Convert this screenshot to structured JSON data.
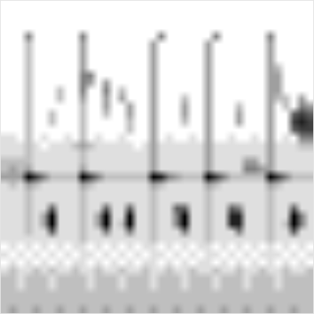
{
  "chart_data": {
    "type": "heatmap",
    "xlim": [
      0,
      400
    ],
    "ylim": [
      0,
      400
    ],
    "xticks": [],
    "yticks": [
      60,
      102,
      138,
      172,
      208,
      242,
      278,
      310,
      350,
      388
    ],
    "grid": true,
    "tick_labels": false,
    "zlim": [
      0,
      8
    ],
    "cells": [
      [
        0,
        0,
        0,
        0,
        0,
        0,
        0,
        0,
        0,
        0,
        0,
        0,
        0,
        0,
        0,
        0,
        0,
        0,
        0,
        0,
        0,
        0,
        0,
        0,
        0,
        0,
        0,
        0,
        0,
        0,
        0,
        0,
        0,
        0,
        0,
        0,
        0,
        0,
        0,
        0
      ],
      [
        0,
        0,
        0,
        0,
        0,
        0,
        0,
        0,
        0,
        0,
        0,
        0,
        0,
        0,
        0,
        0,
        0,
        0,
        0,
        0,
        0,
        0,
        0,
        0,
        0,
        0,
        0,
        0,
        0,
        0,
        0,
        0,
        0,
        0,
        0,
        0,
        0,
        0,
        0,
        0
      ],
      [
        0,
        0,
        0,
        0,
        0,
        0,
        0,
        0,
        0,
        0,
        0,
        0,
        0,
        0,
        0,
        0,
        0,
        0,
        0,
        0,
        0,
        0,
        0,
        0,
        0,
        0,
        0,
        0,
        0,
        0,
        0,
        0,
        0,
        0,
        0,
        0,
        0,
        0,
        0,
        0
      ],
      [
        0,
        0,
        0,
        0,
        0,
        0,
        0,
        0,
        0,
        0,
        0,
        0,
        0,
        0,
        0,
        0,
        0,
        0,
        0,
        0,
        0,
        0,
        0,
        0,
        0,
        0,
        0,
        0,
        0,
        0,
        0,
        0,
        0,
        0,
        0,
        0,
        0,
        0,
        0,
        0
      ],
      [
        0,
        0,
        0,
        4,
        0,
        0,
        0,
        0,
        0,
        0,
        4,
        0,
        0,
        0,
        0,
        0,
        0,
        0,
        0,
        0,
        4,
        0,
        0,
        0,
        0,
        0,
        0,
        4,
        0,
        0,
        0,
        0,
        0,
        0,
        4,
        0,
        0,
        0,
        0,
        0
      ],
      [
        0,
        0,
        0,
        2,
        0,
        0,
        0,
        0,
        0,
        0,
        3,
        0,
        0,
        0,
        0,
        0,
        0,
        0,
        0,
        3,
        0,
        0,
        0,
        0,
        0,
        0,
        3,
        0,
        0,
        0,
        0,
        0,
        0,
        0,
        3,
        0,
        0,
        0,
        0,
        0
      ],
      [
        0,
        0,
        0,
        2,
        0,
        0,
        0,
        0,
        0,
        0,
        3,
        0,
        0,
        0,
        0,
        0,
        0,
        0,
        0,
        3,
        0,
        0,
        0,
        0,
        0,
        0,
        3,
        0,
        0,
        0,
        0,
        0,
        0,
        0,
        3,
        0,
        0,
        0,
        0,
        0
      ],
      [
        0,
        0,
        0,
        2,
        0,
        0,
        0,
        0,
        0,
        0,
        3,
        0,
        0,
        0,
        0,
        0,
        0,
        0,
        0,
        3,
        0,
        0,
        0,
        0,
        0,
        0,
        3,
        0,
        0,
        0,
        0,
        0,
        0,
        0,
        3,
        0,
        0,
        0,
        0,
        0
      ],
      [
        0,
        0,
        0,
        2,
        0,
        0,
        0,
        0,
        0,
        0,
        3,
        0,
        0,
        0,
        0,
        0,
        0,
        0,
        0,
        3,
        0,
        0,
        0,
        0,
        0,
        0,
        3,
        0,
        0,
        0,
        0,
        0,
        0,
        0,
        3,
        2,
        0,
        0,
        0,
        0
      ],
      [
        0,
        0,
        0,
        2,
        0,
        0,
        0,
        0,
        0,
        0,
        4,
        4,
        0,
        0,
        0,
        0,
        0,
        0,
        0,
        3,
        0,
        0,
        0,
        0,
        0,
        0,
        3,
        0,
        0,
        0,
        0,
        0,
        0,
        0,
        3,
        3,
        0,
        0,
        0,
        0
      ],
      [
        0,
        0,
        0,
        2,
        0,
        0,
        0,
        0,
        0,
        0,
        4,
        3,
        0,
        3,
        0,
        0,
        0,
        0,
        0,
        3,
        0,
        0,
        0,
        0,
        0,
        0,
        3,
        0,
        0,
        0,
        0,
        0,
        0,
        0,
        3,
        3,
        0,
        0,
        0,
        0
      ],
      [
        0,
        0,
        0,
        2,
        0,
        0,
        0,
        2,
        0,
        0,
        4,
        0,
        0,
        4,
        0,
        2,
        0,
        0,
        0,
        3,
        0,
        0,
        0,
        0,
        0,
        0,
        3,
        0,
        0,
        0,
        0,
        0,
        0,
        0,
        3,
        3,
        0,
        0,
        0,
        0
      ],
      [
        0,
        0,
        0,
        2,
        0,
        0,
        0,
        2,
        0,
        0,
        3,
        0,
        0,
        3,
        0,
        3,
        0,
        0,
        0,
        3,
        0,
        0,
        0,
        2,
        0,
        0,
        3,
        0,
        0,
        0,
        0,
        0,
        0,
        0,
        3,
        2,
        2,
        0,
        3,
        0
      ],
      [
        0,
        0,
        0,
        2,
        0,
        0,
        0,
        0,
        0,
        0,
        2,
        0,
        0,
        3,
        0,
        0,
        3,
        0,
        0,
        3,
        0,
        0,
        0,
        3,
        0,
        0,
        3,
        0,
        0,
        0,
        2,
        0,
        0,
        0,
        3,
        0,
        2,
        0,
        4,
        3
      ],
      [
        0,
        0,
        0,
        2,
        0,
        0,
        2,
        0,
        0,
        0,
        2,
        0,
        0,
        2,
        0,
        0,
        3,
        0,
        0,
        3,
        0,
        0,
        0,
        3,
        0,
        0,
        3,
        0,
        0,
        0,
        3,
        0,
        0,
        0,
        3,
        0,
        0,
        5,
        6,
        5
      ],
      [
        0,
        0,
        0,
        2,
        0,
        0,
        2,
        0,
        0,
        0,
        2,
        0,
        0,
        0,
        0,
        0,
        2,
        0,
        0,
        3,
        0,
        0,
        0,
        2,
        0,
        0,
        3,
        0,
        0,
        0,
        3,
        0,
        0,
        0,
        3,
        0,
        0,
        6,
        7,
        6
      ],
      [
        0,
        0,
        0,
        2,
        0,
        0,
        0,
        0,
        0,
        0,
        2,
        0,
        0,
        0,
        0,
        0,
        2,
        0,
        0,
        3,
        0,
        0,
        0,
        0,
        0,
        0,
        3,
        0,
        0,
        0,
        0,
        0,
        0,
        0,
        3,
        0,
        0,
        5,
        6,
        6
      ],
      [
        1,
        1,
        0,
        2,
        0,
        1,
        0,
        0,
        1,
        0,
        2,
        0,
        1,
        0,
        0,
        1,
        0,
        0,
        0,
        3,
        0,
        1,
        0,
        0,
        1,
        0,
        3,
        0,
        0,
        1,
        0,
        0,
        1,
        0,
        3,
        0,
        1,
        0,
        4,
        4
      ],
      [
        1,
        1,
        1,
        2,
        1,
        0,
        1,
        1,
        1,
        2,
        3,
        2,
        1,
        1,
        1,
        1,
        1,
        0,
        1,
        3,
        1,
        1,
        1,
        1,
        1,
        1,
        3,
        1,
        1,
        1,
        1,
        1,
        1,
        1,
        3,
        1,
        1,
        1,
        2,
        2
      ],
      [
        1,
        1,
        1,
        2,
        1,
        1,
        1,
        1,
        1,
        1,
        2,
        1,
        1,
        1,
        1,
        1,
        1,
        1,
        1,
        3,
        1,
        1,
        1,
        1,
        1,
        1,
        3,
        1,
        1,
        1,
        1,
        1,
        1,
        1,
        3,
        1,
        1,
        1,
        1,
        1
      ],
      [
        2,
        2,
        2,
        2,
        1,
        1,
        1,
        1,
        1,
        1,
        2,
        1,
        1,
        1,
        1,
        1,
        1,
        1,
        1,
        3,
        1,
        1,
        1,
        1,
        1,
        1,
        3,
        1,
        1,
        1,
        1,
        3,
        3,
        1,
        3,
        1,
        1,
        1,
        1,
        1
      ],
      [
        2,
        3,
        2,
        3,
        1,
        1,
        1,
        1,
        1,
        1,
        3,
        1,
        1,
        1,
        1,
        1,
        1,
        1,
        1,
        3,
        1,
        1,
        1,
        1,
        1,
        1,
        3,
        1,
        1,
        1,
        1,
        4,
        4,
        3,
        3,
        1,
        1,
        1,
        1,
        1
      ],
      [
        3,
        3,
        3,
        8,
        6,
        4,
        2,
        2,
        2,
        2,
        8,
        6,
        4,
        2,
        2,
        2,
        2,
        2,
        2,
        8,
        7,
        4,
        3,
        2,
        2,
        2,
        8,
        6,
        4,
        2,
        2,
        2,
        2,
        2,
        8,
        6,
        4,
        2,
        2,
        2
      ],
      [
        1,
        2,
        1,
        3,
        2,
        1,
        1,
        1,
        1,
        1,
        3,
        2,
        1,
        1,
        1,
        1,
        1,
        1,
        1,
        3,
        2,
        1,
        1,
        1,
        1,
        1,
        3,
        2,
        1,
        1,
        1,
        1,
        1,
        1,
        3,
        2,
        1,
        1,
        1,
        1
      ],
      [
        1,
        1,
        1,
        2,
        1,
        1,
        1,
        1,
        1,
        1,
        2,
        1,
        1,
        1,
        1,
        1,
        1,
        1,
        1,
        2,
        1,
        1,
        1,
        1,
        1,
        1,
        2,
        1,
        1,
        1,
        1,
        1,
        1,
        1,
        2,
        1,
        1,
        1,
        1,
        1
      ],
      [
        1,
        1,
        1,
        2,
        1,
        1,
        1,
        1,
        1,
        1,
        2,
        1,
        1,
        1,
        1,
        1,
        1,
        1,
        1,
        2,
        1,
        1,
        1,
        1,
        1,
        1,
        2,
        1,
        1,
        1,
        1,
        1,
        1,
        1,
        2,
        1,
        1,
        1,
        1,
        1
      ],
      [
        1,
        1,
        1,
        2,
        1,
        1,
        5,
        1,
        1,
        1,
        2,
        1,
        1,
        5,
        1,
        1,
        5,
        1,
        1,
        2,
        1,
        1,
        5,
        5,
        1,
        1,
        2,
        1,
        1,
        5,
        4,
        1,
        1,
        1,
        2,
        1,
        1,
        5,
        1,
        1
      ],
      [
        1,
        1,
        1,
        2,
        1,
        3,
        8,
        1,
        1,
        1,
        2,
        1,
        3,
        8,
        1,
        1,
        8,
        1,
        1,
        2,
        1,
        1,
        4,
        8,
        1,
        1,
        2,
        1,
        1,
        7,
        7,
        1,
        1,
        1,
        2,
        1,
        1,
        8,
        4,
        1
      ],
      [
        1,
        1,
        1,
        2,
        1,
        3,
        8,
        1,
        1,
        1,
        2,
        1,
        3,
        8,
        1,
        2,
        8,
        1,
        1,
        2,
        1,
        1,
        4,
        8,
        1,
        1,
        2,
        1,
        1,
        7,
        7,
        1,
        1,
        1,
        2,
        1,
        2,
        8,
        4,
        1
      ],
      [
        1,
        1,
        1,
        2,
        1,
        1,
        5,
        1,
        1,
        1,
        2,
        1,
        1,
        4,
        1,
        1,
        4,
        1,
        1,
        2,
        1,
        1,
        1,
        4,
        1,
        1,
        2,
        1,
        1,
        1,
        4,
        1,
        1,
        1,
        2,
        1,
        1,
        5,
        1,
        1
      ],
      [
        1,
        1,
        1,
        1,
        1,
        1,
        1,
        1,
        1,
        1,
        2,
        1,
        1,
        1,
        1,
        1,
        1,
        1,
        1,
        2,
        1,
        1,
        1,
        1,
        1,
        1,
        2,
        1,
        1,
        1,
        1,
        1,
        1,
        1,
        2,
        1,
        1,
        1,
        1,
        1
      ],
      [
        0,
        1,
        0,
        1,
        0,
        1,
        0,
        1,
        0,
        1,
        1,
        0,
        1,
        0,
        1,
        0,
        1,
        0,
        1,
        1,
        0,
        1,
        0,
        1,
        0,
        1,
        1,
        0,
        1,
        0,
        1,
        0,
        1,
        0,
        1,
        0,
        1,
        0,
        1,
        0
      ],
      [
        1,
        0,
        1,
        0,
        1,
        0,
        1,
        0,
        1,
        0,
        1,
        1,
        0,
        1,
        0,
        1,
        0,
        1,
        0,
        1,
        1,
        0,
        1,
        0,
        1,
        0,
        1,
        1,
        0,
        1,
        0,
        1,
        0,
        1,
        1,
        1,
        0,
        1,
        0,
        1
      ],
      [
        0,
        1,
        0,
        1,
        0,
        1,
        0,
        1,
        0,
        1,
        1,
        0,
        1,
        0,
        1,
        0,
        1,
        0,
        1,
        1,
        0,
        1,
        0,
        1,
        0,
        1,
        1,
        0,
        1,
        0,
        1,
        0,
        1,
        0,
        1,
        0,
        1,
        0,
        1,
        0
      ],
      [
        1,
        2,
        1,
        1,
        2,
        1,
        2,
        1,
        1,
        2,
        1,
        1,
        2,
        1,
        1,
        2,
        1,
        1,
        2,
        1,
        1,
        2,
        1,
        1,
        2,
        1,
        1,
        2,
        1,
        1,
        2,
        1,
        1,
        2,
        1,
        1,
        2,
        1,
        1,
        2
      ],
      [
        2,
        2,
        1,
        2,
        2,
        2,
        1,
        2,
        2,
        2,
        2,
        1,
        2,
        2,
        2,
        1,
        2,
        2,
        2,
        1,
        2,
        2,
        2,
        1,
        2,
        2,
        2,
        1,
        2,
        2,
        2,
        1,
        2,
        2,
        2,
        1,
        2,
        2,
        2,
        2
      ],
      [
        2,
        2,
        1,
        2,
        2,
        2,
        1,
        2,
        2,
        2,
        2,
        1,
        2,
        2,
        2,
        1,
        2,
        2,
        2,
        1,
        2,
        2,
        2,
        1,
        2,
        2,
        2,
        1,
        2,
        2,
        2,
        1,
        2,
        2,
        2,
        1,
        2,
        2,
        2,
        2
      ],
      [
        2,
        2,
        2,
        2,
        2,
        2,
        2,
        2,
        2,
        2,
        2,
        2,
        2,
        2,
        2,
        2,
        2,
        2,
        2,
        2,
        2,
        2,
        2,
        2,
        2,
        2,
        2,
        2,
        2,
        2,
        2,
        2,
        2,
        2,
        2,
        2,
        2,
        2,
        2,
        2
      ],
      [
        2,
        2,
        2,
        2,
        2,
        2,
        2,
        2,
        2,
        2,
        2,
        2,
        2,
        2,
        2,
        2,
        2,
        2,
        2,
        2,
        2,
        2,
        2,
        2,
        2,
        2,
        2,
        2,
        2,
        2,
        2,
        2,
        2,
        2,
        2,
        2,
        2,
        2,
        2,
        2
      ],
      [
        2,
        3,
        2,
        2,
        3,
        2,
        2,
        3,
        2,
        2,
        3,
        2,
        2,
        3,
        2,
        2,
        3,
        2,
        2,
        3,
        2,
        2,
        3,
        2,
        2,
        3,
        2,
        2,
        3,
        2,
        2,
        3,
        2,
        2,
        3,
        2,
        2,
        3,
        2,
        2
      ]
    ]
  }
}
